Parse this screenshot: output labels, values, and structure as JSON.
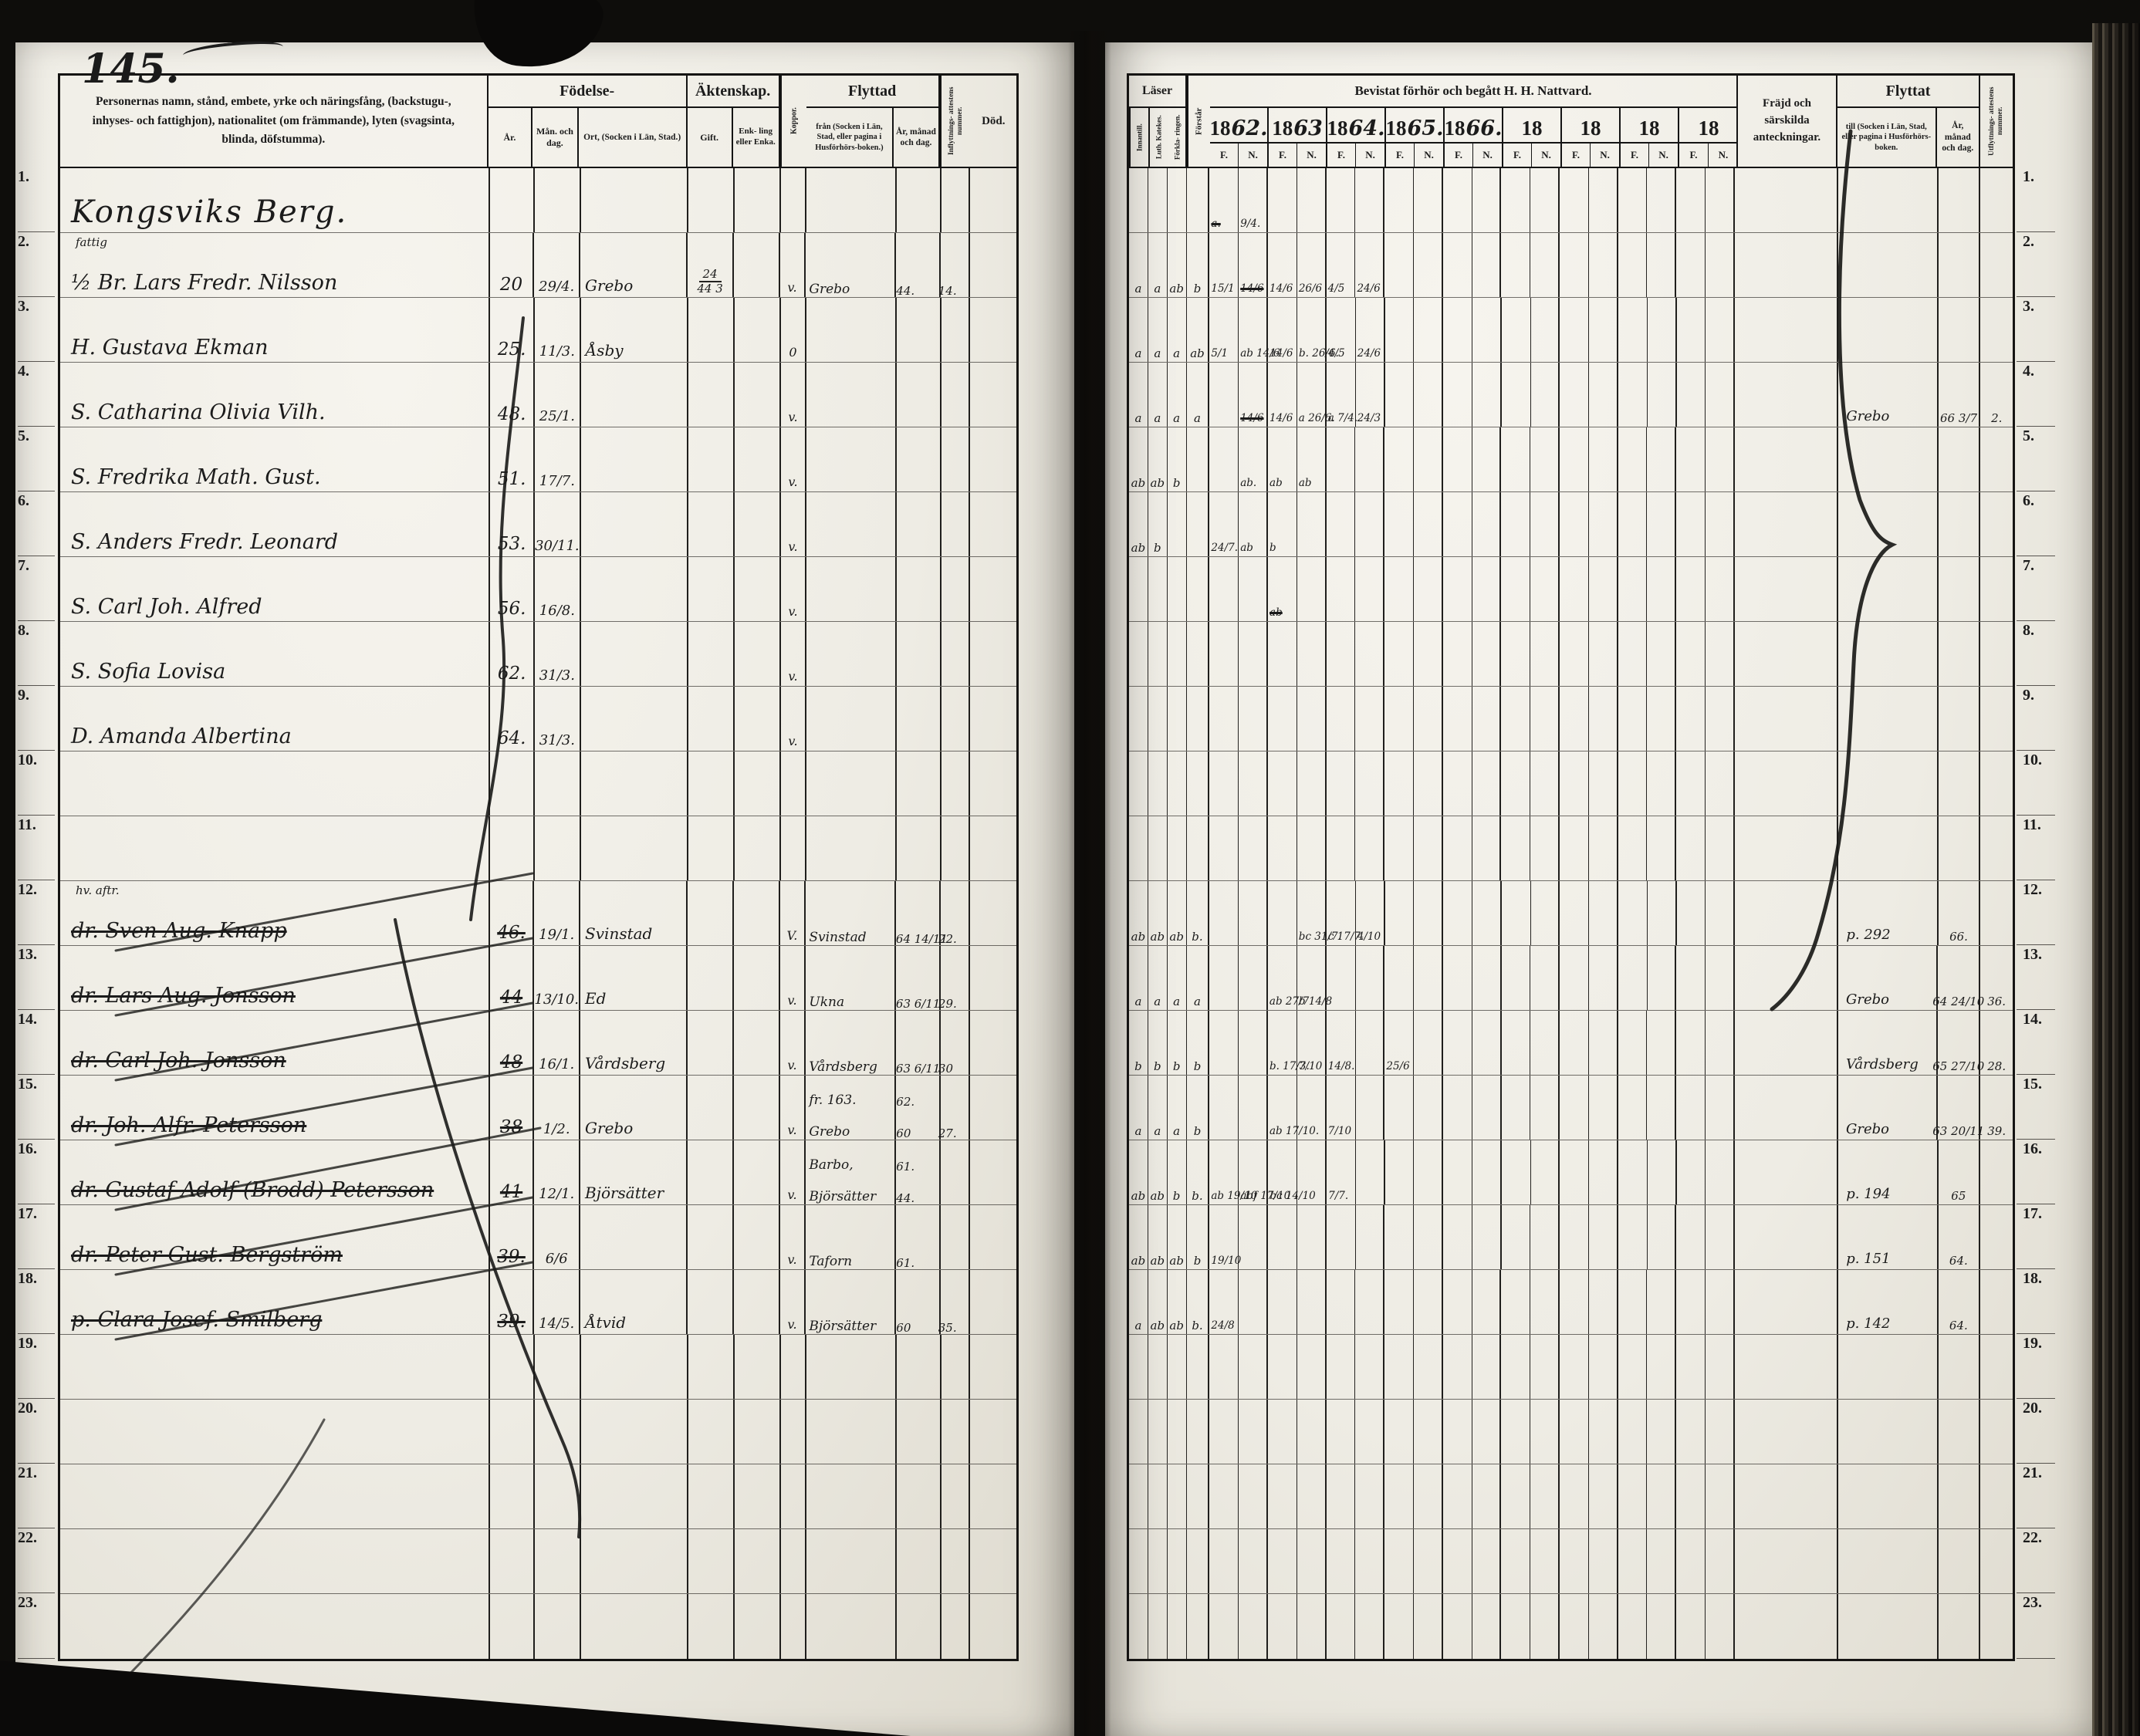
{
  "page_number": "145.",
  "colors": {
    "paper": "#efece4",
    "ink": "#1b1b1b",
    "background": "#0e0d0b"
  },
  "left_header": {
    "name_col": "Personernas namn, stånd, embete, yrke och näringsfång, (backstugu-, inhyses- och fattighjon), nationalitet (om främmande), lyten (svagsinta, blinda, döfstumma).",
    "birth_group": "Födelse-",
    "birth_year": "År.",
    "birth_monthday": "Mån. och dag.",
    "birth_place": "Ort, (Socken i Län, Stad.)",
    "marriage_group": "Äktenskap.",
    "married": "Gift.",
    "widowed": "Enk- ling eller Enka.",
    "smallpox": "Koppor.",
    "movedin_group": "Flyttad",
    "movedin_from": "från (Socken i Län, Stad, eller pagina i Husförhörs-boken.)",
    "movedin_date": "År, månad och dag.",
    "movedin_cert": "Inflyttnings- attestens nummer.",
    "death": "Död."
  },
  "right_header": {
    "reads_group": "Läser",
    "reads_cols": [
      "Innantill.",
      "Luth. Katekes.",
      "Förkla- ringen."
    ],
    "understands": "Förstår",
    "communion_group": "Bevistat förhör och begått H. H. Nattvard.",
    "years": [
      "1862.",
      "1863",
      "1864.",
      "1865.",
      "1866.",
      "18",
      "18",
      "18",
      "18"
    ],
    "fn": [
      "F.",
      "N."
    ],
    "conduct": "Fräjd och särskilda anteckningar.",
    "movedout_group": "Flyttat",
    "movedout_to": "till (Socken i Län, Stad, eller pagina i Husförhörs-boken.",
    "movedout_date": "År, månad och dag.",
    "movedout_cert": "Utflyttnings- attestens nummer."
  },
  "rows": [
    {
      "num": "1.",
      "name": "Kongsviks Berg.",
      "heading": true,
      "nv": [
        {
          "c": 0,
          "t": "a.",
          "x": true
        },
        {
          "c": 1,
          "t": "9/4."
        }
      ]
    },
    {
      "num": "2.",
      "name": "½ Br. Lars Fredr. Nilsson",
      "note": "fattig",
      "by": "20",
      "bd": "29/4.",
      "bo": "Grebo",
      "gift1": "24",
      "gift2": "44 3",
      "kop": "v.",
      "fr": [
        {
          "p": "Grebo",
          "d": "44.",
          "a": "14."
        }
      ],
      "las": [
        "a",
        "a",
        "ab",
        "b"
      ],
      "nv": [
        {
          "c": 0,
          "t": "15/1"
        },
        {
          "c": 1,
          "t": "14/6",
          "x": true
        },
        {
          "c": 2,
          "t": "14/6"
        },
        {
          "c": 3,
          "t": "26/6"
        },
        {
          "c": 4,
          "t": "4/5"
        },
        {
          "c": 5,
          "t": "24/6"
        }
      ]
    },
    {
      "num": "3.",
      "name": "H. Gustava Ekman",
      "by": "25.",
      "bd": "11/3.",
      "bo": "Åsby",
      "kop": "0",
      "las": [
        "a",
        "a",
        "a",
        "ab"
      ],
      "nv": [
        {
          "c": 0,
          "t": "5/1"
        },
        {
          "c": 1,
          "t": "ab 14/6"
        },
        {
          "c": 2,
          "t": "14/6"
        },
        {
          "c": 3,
          "t": "b. 26/6."
        },
        {
          "c": 4,
          "t": "4/5"
        },
        {
          "c": 5,
          "t": "24/6"
        }
      ]
    },
    {
      "num": "4.",
      "name": "S. Catharina Olivia Vilh.",
      "by": "48.",
      "bd": "25/1.",
      "kop": "v.",
      "las": [
        "a",
        "a",
        "a",
        "a"
      ],
      "nv": [
        {
          "c": 1,
          "t": "14/6",
          "x": true
        },
        {
          "c": 2,
          "t": "14/6"
        },
        {
          "c": 3,
          "t": "a 26/6."
        },
        {
          "c": 4,
          "t": "a 7/4."
        },
        {
          "c": 5,
          "t": "24/3"
        }
      ],
      "till": {
        "p": "Grebo",
        "d": "66 3/7",
        "a": "2."
      }
    },
    {
      "num": "5.",
      "name": "S. Fredrika Math. Gust.",
      "by": "51.",
      "bd": "17/7.",
      "kop": "v.",
      "las": [
        "ab",
        "ab",
        "b",
        ""
      ],
      "nv": [
        {
          "c": 1,
          "t": "ab."
        },
        {
          "c": 2,
          "t": "ab"
        },
        {
          "c": 3,
          "t": "ab"
        }
      ]
    },
    {
      "num": "6.",
      "name": "S. Anders Fredr. Leonard",
      "by": "53.",
      "bd": "30/11.",
      "kop": "v.",
      "las": [
        "ab",
        "b",
        "",
        ""
      ],
      "nv": [
        {
          "c": 0,
          "t": "24/7."
        },
        {
          "c": 1,
          "t": "ab"
        },
        {
          "c": 2,
          "t": "b"
        }
      ]
    },
    {
      "num": "7.",
      "name": "S. Carl Joh. Alfred",
      "by": "56.",
      "bd": "16/8.",
      "kop": "v.",
      "nv": [
        {
          "c": 2,
          "t": "ab",
          "x": true
        }
      ]
    },
    {
      "num": "8.",
      "name": "S. Sofia Lovisa",
      "by": "62.",
      "bd": "31/3.",
      "kop": "v."
    },
    {
      "num": "9.",
      "name": "D. Amanda Albertina",
      "by": "64.",
      "bd": "31/3.",
      "kop": "v."
    },
    {
      "num": "10."
    },
    {
      "num": "11."
    },
    {
      "num": "12.",
      "name": "dr. Sven Aug. Knapp",
      "struck": true,
      "note": "hv. aftr.",
      "by": "46.",
      "bd": "19/1.",
      "bo": "Svinstad",
      "kop": "V.",
      "fr": [
        {
          "p": "Svinstad",
          "d": "64 14/11",
          "a": "22."
        }
      ],
      "las": [
        "ab",
        "ab",
        "ab",
        "b."
      ],
      "nv": [
        {
          "c": 3,
          "t": "bc 31/7."
        },
        {
          "c": 4,
          "t": "c 17/7."
        },
        {
          "c": 5,
          "t": "4/10"
        }
      ],
      "till": {
        "p": "p. 292",
        "d": "66."
      }
    },
    {
      "num": "13.",
      "name": "dr. Lars Aug. Jonsson",
      "struck": true,
      "by": "44",
      "bd": "13/10.",
      "bo": "Ed",
      "kop": "v.",
      "fr": [
        {
          "p": "Ukna",
          "d": "63 6/11",
          "a": "29."
        }
      ],
      "las": [
        "a",
        "a",
        "a",
        "a"
      ],
      "nv": [
        {
          "c": 2,
          "t": "ab 27/7"
        },
        {
          "c": 3,
          "t": "b 14/8"
        }
      ],
      "till": {
        "p": "Grebo",
        "d": "64 24/10",
        "a": "36."
      }
    },
    {
      "num": "14.",
      "name": "dr. Carl Joh. Jonsson",
      "struck": true,
      "by": "48",
      "bd": "16/1.",
      "bo": "Vårdsberg",
      "kop": "v.",
      "fr": [
        {
          "p": "Vårdsberg",
          "d": "63 6/11",
          "a": "30"
        }
      ],
      "las": [
        "b",
        "b",
        "b",
        "b"
      ],
      "nv": [
        {
          "c": 2,
          "t": "b. 17/3."
        },
        {
          "c": 3,
          "t": "7/10"
        },
        {
          "c": 4,
          "t": "14/8."
        },
        {
          "c": 6,
          "t": "25/6"
        }
      ],
      "till": {
        "p": "Vårdsberg",
        "d": "65 27/10",
        "a": "28."
      }
    },
    {
      "num": "15.",
      "name": "dr. Joh. Alfr. Petersson",
      "struck": true,
      "by": "38",
      "bd": "1/2.",
      "bo": "Grebo",
      "kop": "v.",
      "fr": [
        {
          "p": "fr. 163.",
          "d": "62."
        },
        {
          "p": "Grebo",
          "d": "60",
          "a": "27."
        }
      ],
      "las": [
        "a",
        "a",
        "a",
        "b"
      ],
      "nv": [
        {
          "c": 2,
          "t": "ab 17/10."
        },
        {
          "c": 4,
          "t": "7/10"
        }
      ],
      "till": {
        "p": "Grebo",
        "d": "63 20/11",
        "a": "39."
      }
    },
    {
      "num": "16.",
      "name": "dr. Gustaf Adolf (Brodd) Petersson",
      "struck": true,
      "by": "41",
      "bd": "12/1.",
      "bo": "Björsätter",
      "kop": "v.",
      "fr": [
        {
          "p": "Barbo,",
          "d": "61."
        },
        {
          "p": "Björsätter",
          "d": "44."
        }
      ],
      "las": [
        "ab",
        "ab",
        "b",
        "b."
      ],
      "nv": [
        {
          "c": 0,
          "t": "ab 19/10"
        },
        {
          "c": 1,
          "t": "abf 17/10"
        },
        {
          "c": 2,
          "t": "bc 14/10"
        },
        {
          "c": 4,
          "t": "7/7."
        }
      ],
      "till": {
        "p": "p. 194",
        "d": "65"
      }
    },
    {
      "num": "17.",
      "name": "dr. Peter Gust. Bergström",
      "struck": true,
      "by": "39.",
      "bd": "6/6",
      "kop": "v.",
      "fr": [
        {
          "p": "Taforn",
          "d": "61."
        }
      ],
      "las": [
        "ab",
        "ab",
        "ab",
        "b"
      ],
      "nv": [
        {
          "c": 0,
          "t": "19/10"
        }
      ],
      "till": {
        "p": "p. 151",
        "d": "64."
      }
    },
    {
      "num": "18.",
      "name": "p. Clara Josef. Smilberg",
      "struck": true,
      "by": "39.",
      "bd": "14/5.",
      "bo": "Åtvid",
      "kop": "v.",
      "fr": [
        {
          "p": "Björsätter",
          "d": "60",
          "a": "35."
        }
      ],
      "las": [
        "a",
        "ab",
        "ab",
        "b."
      ],
      "nv": [
        {
          "c": 0,
          "t": "24/8"
        }
      ],
      "till": {
        "p": "p. 142",
        "d": "64."
      }
    },
    {
      "num": "19."
    },
    {
      "num": "20."
    },
    {
      "num": "21."
    },
    {
      "num": "22."
    },
    {
      "num": "23."
    }
  ]
}
